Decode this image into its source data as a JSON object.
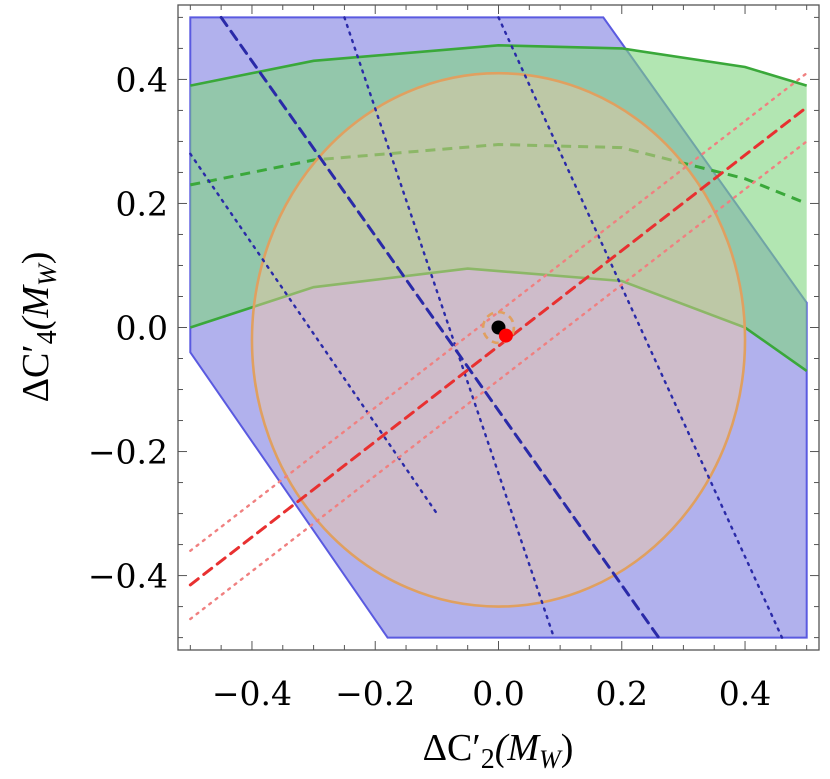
{
  "chart_data": {
    "type": "region",
    "title": "",
    "xlabel": "ΔC′2(MW)",
    "ylabel": "ΔC′4(MW)",
    "xlim": [
      -0.52,
      0.52
    ],
    "ylim": [
      -0.52,
      0.52
    ],
    "x_ticks": [
      {
        "value": -0.4,
        "label": "−0.4"
      },
      {
        "value": -0.2,
        "label": "−0.2"
      },
      {
        "value": 0.0,
        "label": "0.0"
      },
      {
        "value": 0.2,
        "label": "0.2"
      },
      {
        "value": 0.4,
        "label": "0.4"
      }
    ],
    "y_ticks": [
      {
        "value": -0.4,
        "label": "−0.4"
      },
      {
        "value": -0.2,
        "label": "−0.2"
      },
      {
        "value": 0.0,
        "label": "0.0"
      },
      {
        "value": 0.2,
        "label": "0.2"
      },
      {
        "value": 0.4,
        "label": "0.4"
      }
    ],
    "grid": false,
    "colors": {
      "blue_fill": "#9b9be8",
      "blue_edge": "#5a5ae0",
      "blue_line": "#2a2aa8",
      "green_fill": "#7fd67f",
      "green_edge": "#3aa83a",
      "orange_fill": "#f2c9a0",
      "orange_edge": "#e0a060",
      "red_line": "#e83030",
      "pink_line": "#f08080",
      "black_point": "#000000",
      "red_point": "#ff0000"
    },
    "blue_region": [
      [
        -0.5,
        0.5
      ],
      [
        0.17,
        0.5
      ],
      [
        0.5,
        0.04
      ],
      [
        0.5,
        -0.5
      ],
      [
        -0.18,
        -0.5
      ],
      [
        -0.5,
        -0.04
      ]
    ],
    "blue_lines": [
      {
        "style": "dashed",
        "points": [
          [
            -0.45,
            0.5
          ],
          [
            0.26,
            -0.5
          ]
        ]
      },
      {
        "style": "dotted",
        "points": [
          [
            -0.5,
            0.28
          ],
          [
            -0.1,
            -0.3
          ]
        ]
      },
      {
        "style": "dotted",
        "points": [
          [
            -0.25,
            0.5
          ],
          [
            0.09,
            -0.5
          ]
        ]
      },
      {
        "style": "dotted",
        "points": [
          [
            0.0,
            0.5
          ],
          [
            0.46,
            -0.5
          ]
        ]
      }
    ],
    "green_band": {
      "upper": [
        [
          -0.5,
          0.39
        ],
        [
          -0.3,
          0.43
        ],
        [
          0.0,
          0.455
        ],
        [
          0.2,
          0.45
        ],
        [
          0.4,
          0.42
        ],
        [
          0.5,
          0.39
        ]
      ],
      "center": [
        [
          -0.5,
          0.23
        ],
        [
          -0.3,
          0.27
        ],
        [
          0.0,
          0.295
        ],
        [
          0.2,
          0.29
        ],
        [
          0.4,
          0.24
        ],
        [
          0.5,
          0.2
        ]
      ],
      "lower": [
        [
          -0.5,
          0.0
        ],
        [
          -0.3,
          0.065
        ],
        [
          -0.05,
          0.095
        ],
        [
          0.2,
          0.075
        ],
        [
          0.4,
          0.0
        ],
        [
          0.5,
          -0.07
        ]
      ]
    },
    "orange_ellipse": {
      "center": [
        0.0,
        -0.02
      ],
      "rx": 0.4,
      "ry": 0.43
    },
    "red_lines": [
      {
        "style": "dashed",
        "points": [
          [
            -0.5,
            -0.415
          ],
          [
            0.5,
            0.355
          ]
        ]
      },
      {
        "style": "dotted",
        "points": [
          [
            -0.5,
            -0.36
          ],
          [
            0.5,
            0.41
          ]
        ]
      },
      {
        "style": "dotted",
        "points": [
          [
            -0.5,
            -0.47
          ],
          [
            0.5,
            0.3
          ]
        ]
      }
    ],
    "orange_circle": {
      "center": [
        0.0,
        0.0
      ],
      "r": 0.025
    },
    "points": [
      {
        "x": 0.0,
        "y": 0.0,
        "color": "#000000"
      },
      {
        "x": 0.012,
        "y": -0.013,
        "color": "#ff0000"
      }
    ]
  }
}
